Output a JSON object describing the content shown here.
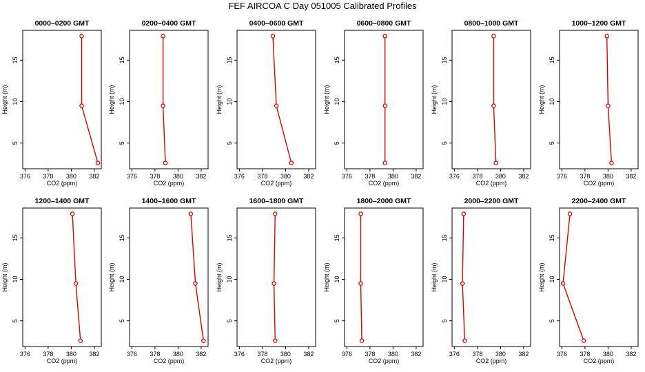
{
  "title": "FEF AIRCOA C  Day 051005  Calibrated Profiles",
  "colors": {
    "series": "#dd0000",
    "axis": "#000000"
  },
  "chart_data": {
    "type": "line",
    "xlabel": "CO2 (ppm)",
    "ylabel": "Height (m)",
    "xlim": [
      375.8,
      382.6
    ],
    "ylim": [
      1.9,
      18.6
    ],
    "xticks": [
      376,
      378,
      380,
      382
    ],
    "yticks": [
      5,
      10,
      15
    ],
    "heights": [
      2.6,
      9.5,
      17.9
    ],
    "grid": false,
    "legend": "none",
    "panels": [
      {
        "title": "0000–0200 GMT",
        "values": [
          382.3,
          380.9,
          380.9
        ]
      },
      {
        "title": "0200–0400 GMT",
        "values": [
          378.9,
          378.7,
          378.7
        ]
      },
      {
        "title": "0400–0600 GMT",
        "values": [
          380.5,
          379.2,
          378.9
        ]
      },
      {
        "title": "0600–0800 GMT",
        "values": [
          379.3,
          379.3,
          379.3
        ]
      },
      {
        "title": "0800–1000 GMT",
        "values": [
          379.6,
          379.4,
          379.4
        ]
      },
      {
        "title": "1000–1200 GMT",
        "values": [
          380.3,
          380.0,
          379.9
        ]
      },
      {
        "title": "1200–1400 GMT",
        "values": [
          380.8,
          380.4,
          380.1
        ]
      },
      {
        "title": "1400–1600 GMT",
        "values": [
          382.2,
          381.5,
          381.1
        ]
      },
      {
        "title": "1600–1800 GMT",
        "values": [
          379.1,
          379.0,
          379.1
        ]
      },
      {
        "title": "1800–2000 GMT",
        "values": [
          377.3,
          377.2,
          377.2
        ]
      },
      {
        "title": "2000–2200 GMT",
        "values": [
          376.9,
          376.7,
          376.8
        ]
      },
      {
        "title": "2200–2400 GMT",
        "values": [
          377.9,
          376.1,
          376.7
        ]
      }
    ]
  }
}
